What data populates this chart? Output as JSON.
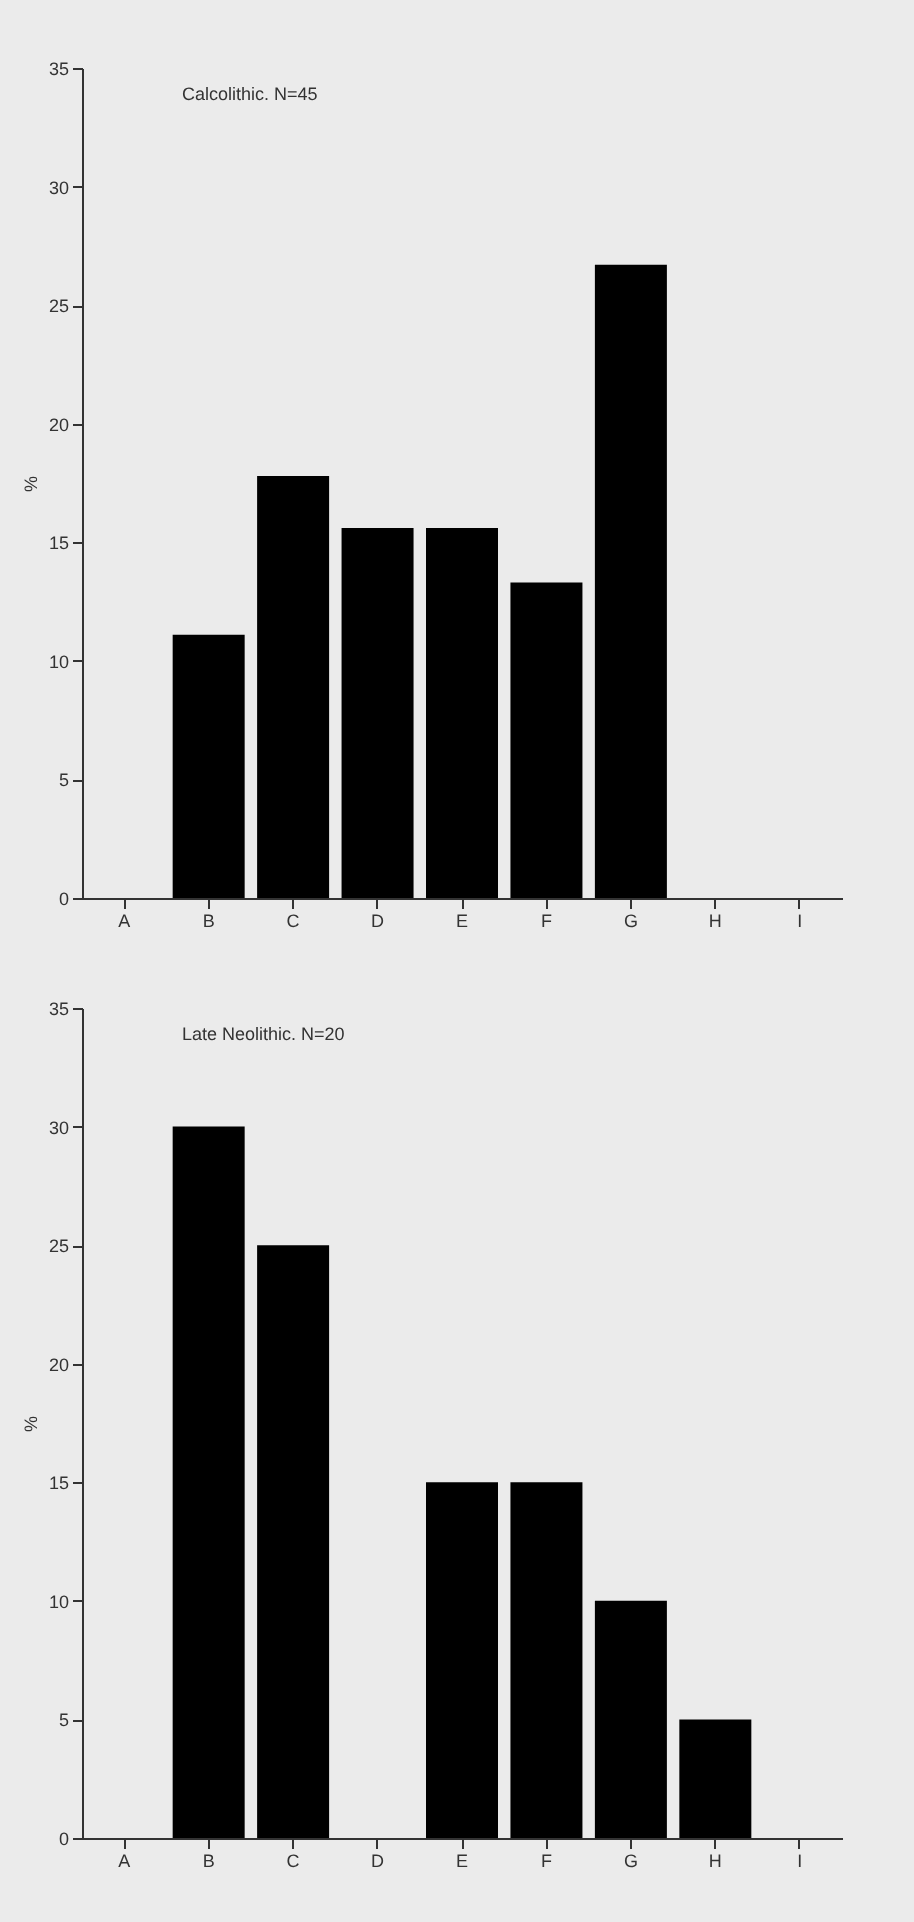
{
  "chart_data": [
    {
      "type": "bar",
      "title": "Calcolithic. N=45",
      "ylabel": "%",
      "categories": [
        "A",
        "B",
        "C",
        "D",
        "E",
        "F",
        "G",
        "H",
        "I"
      ],
      "values": [
        0,
        11.1,
        17.8,
        15.6,
        15.6,
        13.3,
        26.7,
        0,
        0
      ],
      "color": "#000000",
      "ylim": [
        0,
        35
      ],
      "yticks": [
        0,
        5,
        10,
        15,
        20,
        25,
        30,
        35
      ],
      "grid": false
    },
    {
      "type": "bar",
      "title": "Late Neolithic. N=20",
      "ylabel": "%",
      "categories": [
        "A",
        "B",
        "C",
        "D",
        "E",
        "F",
        "G",
        "H",
        "I"
      ],
      "values": [
        0,
        30,
        25,
        0,
        15,
        15,
        10,
        5,
        0
      ],
      "color": "#000000",
      "ylim": [
        0,
        35
      ],
      "yticks": [
        0,
        5,
        10,
        15,
        20,
        25,
        30,
        35
      ],
      "grid": false
    }
  ]
}
